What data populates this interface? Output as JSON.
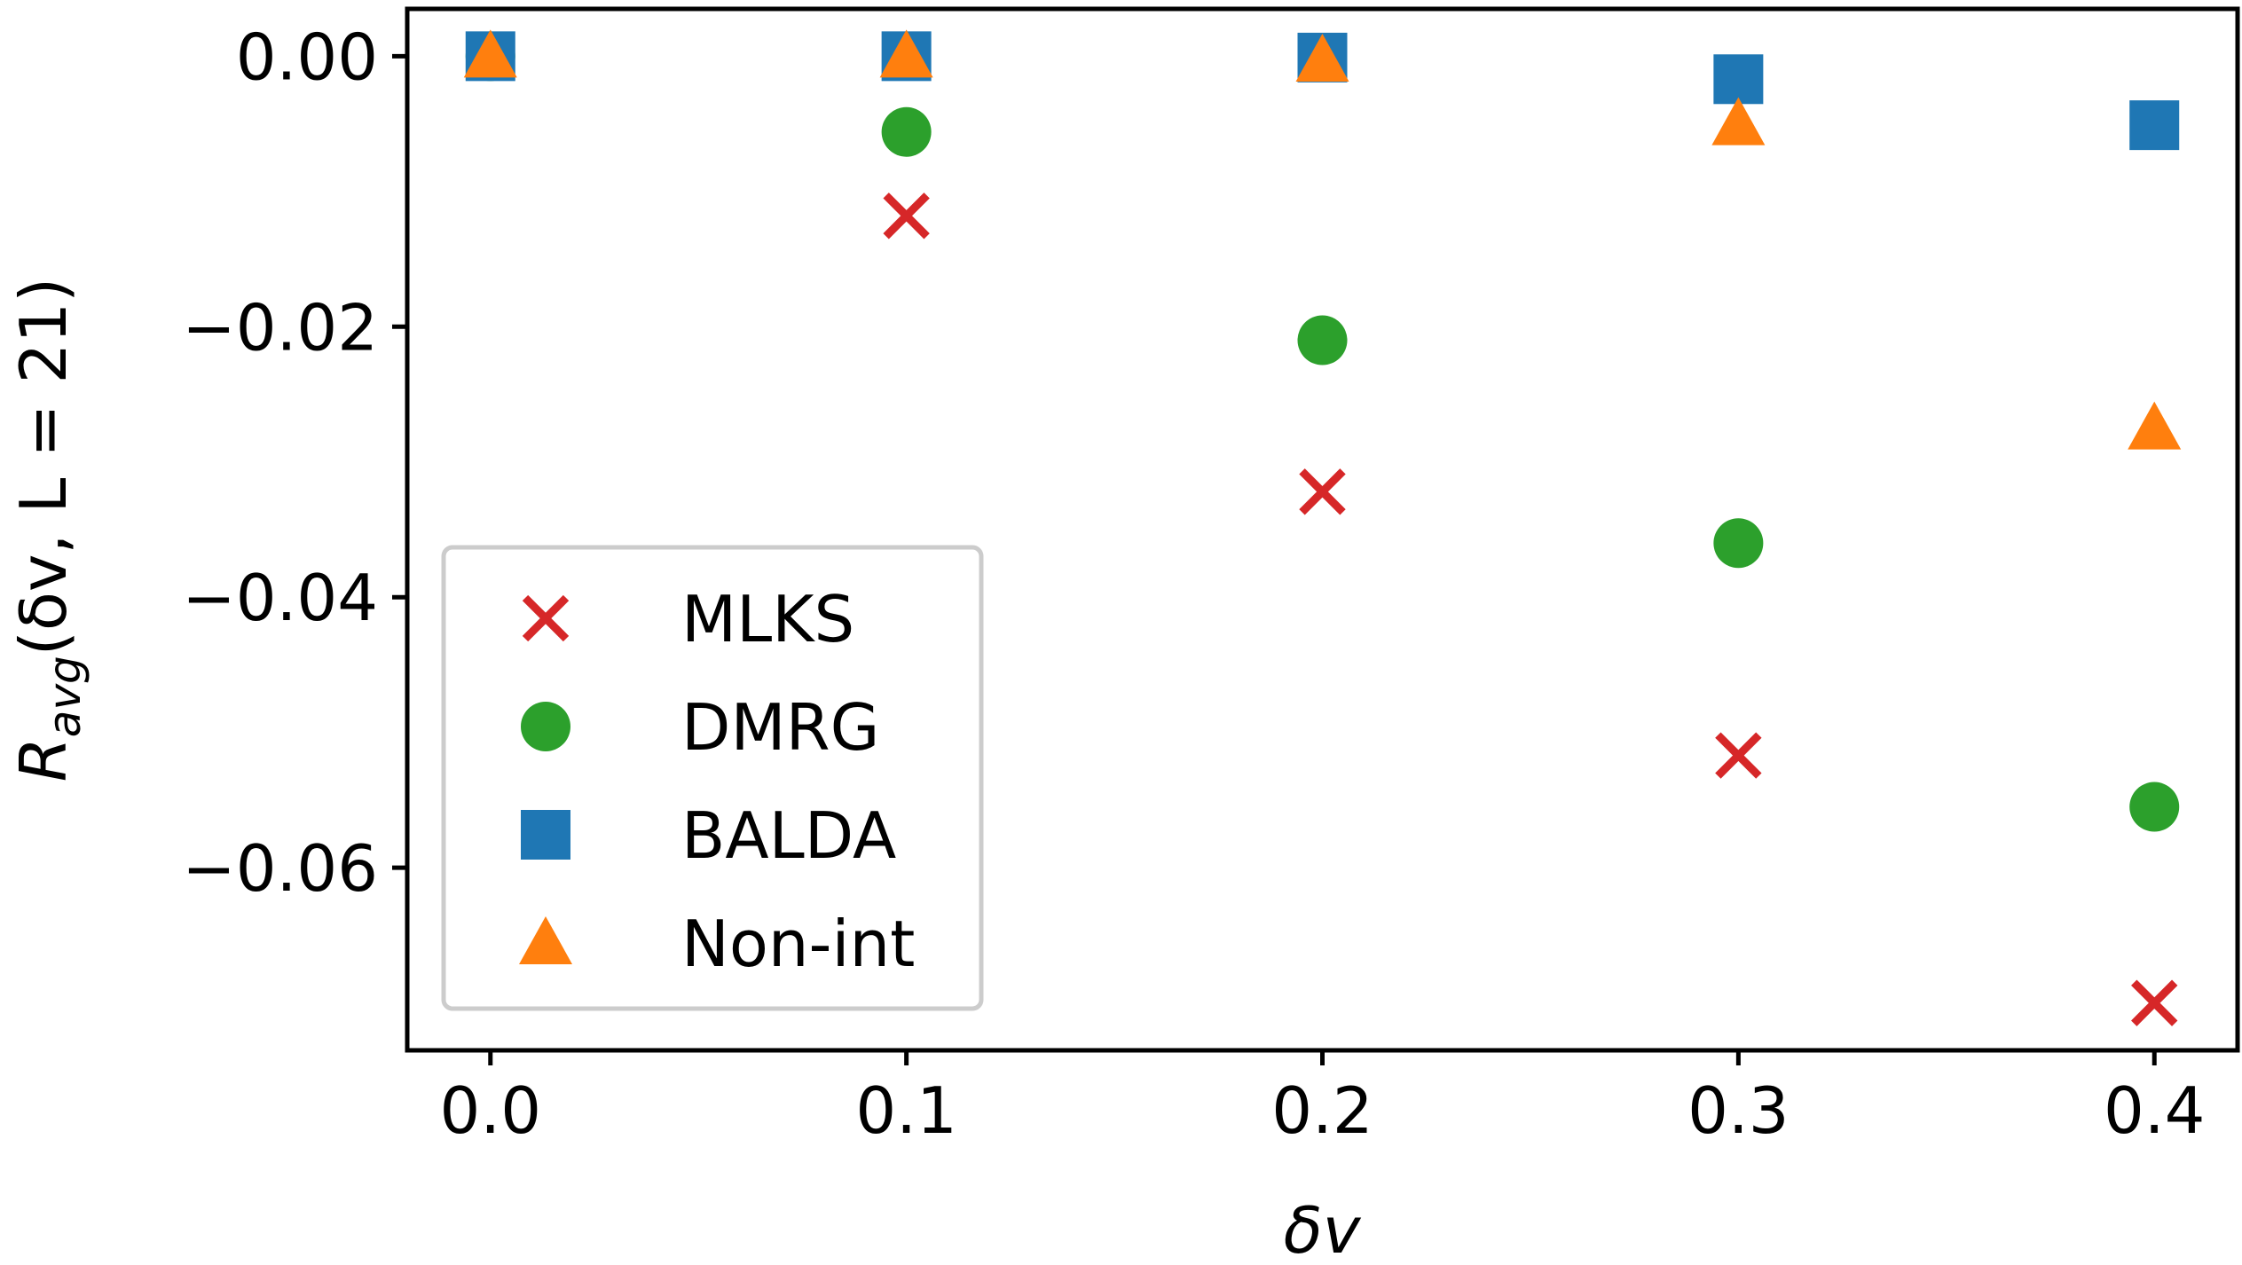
{
  "chart_data": {
    "type": "scatter",
    "title": "",
    "xlabel": "δv",
    "ylabel": {
      "base": "R",
      "subscript": "avg",
      "args": "(δv, L = 21)"
    },
    "xlim": [
      -0.02,
      0.42
    ],
    "ylim": [
      -0.0735,
      0.0035
    ],
    "x_ticks": [
      0.0,
      0.1,
      0.2,
      0.3,
      0.4
    ],
    "x_tick_labels": [
      "0.0",
      "0.1",
      "0.2",
      "0.3",
      "0.4"
    ],
    "y_ticks": [
      0.0,
      -0.02,
      -0.04,
      -0.06
    ],
    "y_tick_labels": [
      "0.00",
      "−0.02",
      "−0.04",
      "−0.06"
    ],
    "grid": false,
    "legend_position": "lower-left",
    "x": [
      0.0,
      0.1,
      0.2,
      0.3,
      0.4
    ],
    "series": [
      {
        "name": "MLKS",
        "marker": "x",
        "color": "#d62728",
        "values": [
          0.0,
          -0.0118,
          -0.0322,
          -0.0517,
          -0.07
        ]
      },
      {
        "name": "DMRG",
        "marker": "circle",
        "color": "#2ca02c",
        "values": [
          0.0,
          -0.0056,
          -0.021,
          -0.036,
          -0.0555
        ]
      },
      {
        "name": "BALDA",
        "marker": "square",
        "color": "#1f77b4",
        "values": [
          0.0,
          0.0,
          -0.0001,
          -0.0017,
          -0.0051
        ]
      },
      {
        "name": "Non-int",
        "marker": "triangle",
        "color": "#ff7f0e",
        "values": [
          0.0,
          0.0,
          -0.0003,
          -0.005,
          -0.0275
        ]
      }
    ]
  }
}
